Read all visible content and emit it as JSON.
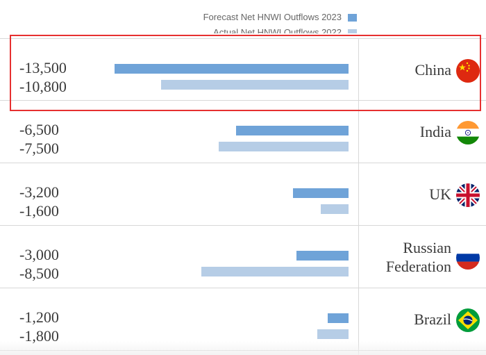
{
  "legend": {
    "forecast_label": "Forecast Net HNWI Outflows 2023",
    "actual_label": "Actual Net HNWI Outflows 2022"
  },
  "colors": {
    "forecast": "#6fa3d8",
    "actual": "#b6cde6",
    "highlight": "#e63030"
  },
  "rows": [
    {
      "country": "China",
      "forecast": "-13,500",
      "actual": "-10,800",
      "flag_icon": "china-flag-icon"
    },
    {
      "country": "India",
      "forecast": "-6,500",
      "actual": "-7,500",
      "flag_icon": "india-flag-icon"
    },
    {
      "country": "UK",
      "forecast": "-3,200",
      "actual": "-1,600",
      "flag_icon": "uk-flag-icon"
    },
    {
      "country": "Russian Federation",
      "country_line1": "Russian",
      "country_line2": "Federation",
      "forecast": "-3,000",
      "actual": "-8,500",
      "flag_icon": "russia-flag-icon"
    },
    {
      "country": "Brazil",
      "forecast": "-1,200",
      "actual": "-1,800",
      "flag_icon": "brazil-flag-icon"
    }
  ],
  "chart_data": {
    "type": "bar",
    "orientation": "horizontal",
    "categories": [
      "China",
      "India",
      "UK",
      "Russian Federation",
      "Brazil"
    ],
    "series": [
      {
        "name": "Forecast Net HNWI Outflows 2023",
        "values": [
          -13500,
          -6500,
          -3200,
          -3000,
          -1200
        ]
      },
      {
        "name": "Actual Net HNWI Outflows 2022",
        "values": [
          -10800,
          -7500,
          -1600,
          -8500,
          -1800
        ]
      }
    ],
    "xlim": [
      -13500,
      0
    ],
    "grid": false,
    "legend": "top-right"
  }
}
